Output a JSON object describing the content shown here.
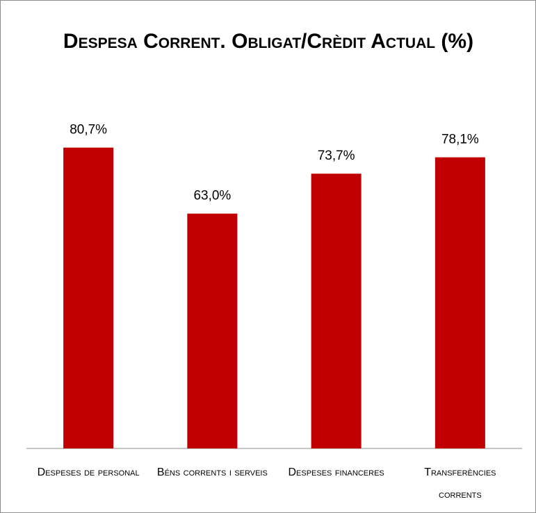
{
  "chart_data": {
    "type": "bar",
    "title": "Despesa Corrent. Obligat/Crèdit Actual (%)",
    "categories": [
      "Despeses de personal",
      "Béns corrents i serveis",
      "Despeses financeres",
      "Transferències corrents"
    ],
    "values": [
      80.7,
      63.0,
      73.7,
      78.1
    ],
    "value_labels": [
      "80,7%",
      "63,0%",
      "73,7%",
      "78,1%"
    ],
    "color": "#c00000"
  }
}
